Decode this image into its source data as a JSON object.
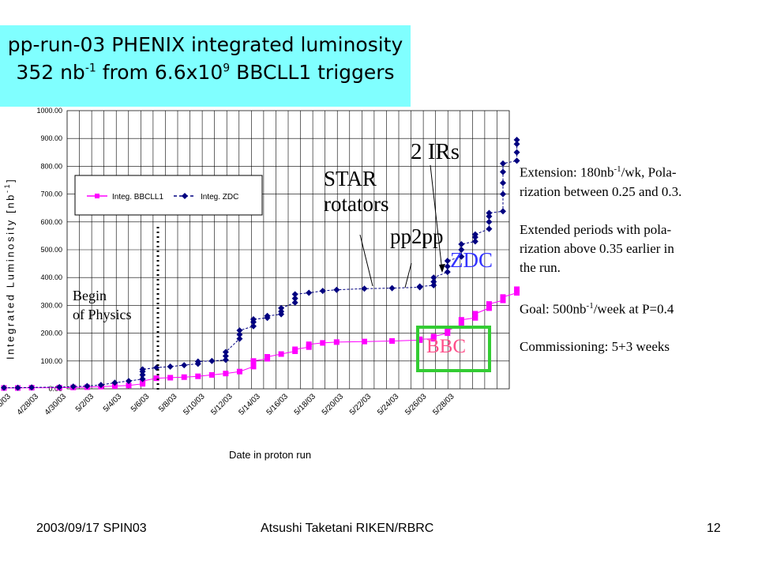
{
  "title": {
    "line1": "pp-run-03 PHENIX integrated luminosity",
    "line2_a": "352 nb",
    "line2_sup": "-1",
    "line2_b": " from 6.6x10",
    "line2_sup2": "9",
    "line2_c": " BBCLL1 triggers"
  },
  "chart_data": {
    "type": "scatter",
    "xlabel": "Date in proton run",
    "ylabel": "Integrated Luminosity [nb-1]",
    "ylabel_main": "Integrated Luminosity  [nb",
    "ylabel_sup": "-1",
    "ylabel_end": "]",
    "ylim": [
      0,
      1000
    ],
    "grid": true,
    "x_tick_labels": [
      "4/26/03",
      "4/28/03",
      "4/30/03",
      "5/2/03",
      "5/4/03",
      "5/6/03",
      "5/8/03",
      "5/10/03",
      "5/12/03",
      "5/14/03",
      "5/16/03",
      "5/18/03",
      "5/20/03",
      "5/22/03",
      "5/24/03",
      "5/26/03",
      "5/28/03"
    ],
    "y_tick_labels": [
      "0.00",
      "100.00",
      "200.00",
      "300.00",
      "400.00",
      "500.00",
      "600.00",
      "700.00",
      "800.00",
      "900.00",
      "1000.00"
    ],
    "x_range_days": [
      0,
      34
    ],
    "legend_placement": "upper-left",
    "series": [
      {
        "name": "Integ. BBCLL1",
        "color": "#ff00ff",
        "marker": "square",
        "line": "solid",
        "points": [
          [
            0,
            3
          ],
          [
            1,
            3
          ],
          [
            2,
            4
          ],
          [
            4,
            4
          ],
          [
            5,
            5
          ],
          [
            6,
            6
          ],
          [
            7,
            8
          ],
          [
            8,
            10
          ],
          [
            9,
            12
          ],
          [
            10,
            18
          ],
          [
            10,
            22
          ],
          [
            10,
            28
          ],
          [
            11,
            38
          ],
          [
            12,
            40
          ],
          [
            13,
            42
          ],
          [
            14,
            45
          ],
          [
            15,
            50
          ],
          [
            16,
            55
          ],
          [
            17,
            62
          ],
          [
            18,
            80
          ],
          [
            18,
            95
          ],
          [
            18,
            100
          ],
          [
            19,
            108
          ],
          [
            19,
            115
          ],
          [
            20,
            125
          ],
          [
            21,
            135
          ],
          [
            21,
            142
          ],
          [
            22,
            150
          ],
          [
            22,
            160
          ],
          [
            23,
            165
          ],
          [
            24,
            168
          ],
          [
            26,
            170
          ],
          [
            28,
            172
          ],
          [
            30,
            175
          ],
          [
            30,
            178
          ],
          [
            31,
            180
          ],
          [
            31,
            188
          ],
          [
            32,
            200
          ],
          [
            32,
            210
          ],
          [
            33,
            230
          ],
          [
            33,
            248
          ],
          [
            34,
            255
          ],
          [
            34,
            270
          ],
          [
            35,
            290
          ],
          [
            35,
            305
          ],
          [
            36,
            318
          ],
          [
            36,
            330
          ],
          [
            37,
            345
          ],
          [
            37,
            358
          ]
        ]
      },
      {
        "name": "Integ. ZDC",
        "color": "#000080",
        "marker": "diamond",
        "line": "dashed",
        "points": [
          [
            0,
            4
          ],
          [
            1,
            4
          ],
          [
            2,
            5
          ],
          [
            4,
            6
          ],
          [
            5,
            8
          ],
          [
            6,
            10
          ],
          [
            7,
            14
          ],
          [
            8,
            22
          ],
          [
            9,
            28
          ],
          [
            10,
            35
          ],
          [
            10,
            50
          ],
          [
            10,
            62
          ],
          [
            10,
            70
          ],
          [
            11,
            76
          ],
          [
            12,
            80
          ],
          [
            13,
            85
          ],
          [
            14,
            90
          ],
          [
            14,
            98
          ],
          [
            15,
            100
          ],
          [
            16,
            104
          ],
          [
            16,
            118
          ],
          [
            16,
            132
          ],
          [
            17,
            180
          ],
          [
            17,
            195
          ],
          [
            17,
            210
          ],
          [
            18,
            225
          ],
          [
            18,
            240
          ],
          [
            18,
            250
          ],
          [
            19,
            255
          ],
          [
            19,
            262
          ],
          [
            20,
            268
          ],
          [
            20,
            278
          ],
          [
            20,
            290
          ],
          [
            21,
            310
          ],
          [
            21,
            325
          ],
          [
            21,
            340
          ],
          [
            22,
            345
          ],
          [
            23,
            352
          ],
          [
            24,
            356
          ],
          [
            26,
            360
          ],
          [
            28,
            362
          ],
          [
            30,
            365
          ],
          [
            30,
            368
          ],
          [
            31,
            372
          ],
          [
            31,
            385
          ],
          [
            31,
            400
          ],
          [
            32,
            420
          ],
          [
            32,
            440
          ],
          [
            32,
            460
          ],
          [
            33,
            475
          ],
          [
            33,
            500
          ],
          [
            33,
            520
          ],
          [
            34,
            530
          ],
          [
            34,
            545
          ],
          [
            34,
            555
          ],
          [
            35,
            575
          ],
          [
            35,
            600
          ],
          [
            35,
            620
          ],
          [
            35,
            632
          ],
          [
            36,
            638
          ],
          [
            36,
            700
          ],
          [
            36,
            740
          ],
          [
            36,
            780
          ],
          [
            36,
            810
          ],
          [
            37,
            820
          ],
          [
            37,
            850
          ],
          [
            37,
            880
          ],
          [
            37,
            895
          ]
        ]
      }
    ]
  },
  "annotations": {
    "begin_physics_1": "Begin",
    "begin_physics_2": "of Physics",
    "two_irs": "2 IRs",
    "star_1": "STAR",
    "star_2": "rotators",
    "pp2pp": "pp2pp",
    "zdc": "ZDC",
    "bbc": "BBC"
  },
  "notes": {
    "ext_a": "Extension: 180nb",
    "ext_sup": "-1",
    "ext_b": "/wk, Pola-",
    "ext_2": "rization between 0.25 and 0.3.",
    "per_1": "Extended periods with pola-",
    "per_2": "rization above 0.35 earlier in",
    "per_3": "the run.",
    "goal_a": "Goal: 500nb",
    "goal_sup": "-1",
    "goal_b": "/week  at P=0.4",
    "comm": "Commissioning: 5+3 weeks"
  },
  "footer": {
    "left": "2003/09/17 SPIN03",
    "center": "Atsushi Taketani RIKEN/RBRC",
    "right": "12"
  }
}
